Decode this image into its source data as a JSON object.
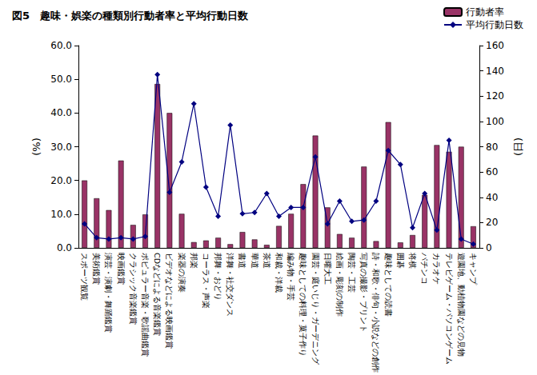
{
  "chart_data": {
    "type": "bar",
    "title": "図5　趣味・娯楽の種類別行動者率と平均行動日数",
    "ylabel": "(%)",
    "y2label": "(日)",
    "categories": [
      "スポーツ観覧",
      "美術鑑賞",
      "演芸・演劇・舞踊鑑賞",
      "映画鑑賞",
      "クラシック音楽鑑賞",
      "ポピュラー音楽・歌謡曲鑑賞",
      "CDなどによる音楽鑑賞",
      "ビデオなどによる映画鑑賞",
      "楽器の演奏",
      "邦楽",
      "コーラス・声楽",
      "邦舞・おどり",
      "洋舞・社交ダンス",
      "書道",
      "華道",
      "茶道",
      "和裁・洋裁",
      "編み物・手芸",
      "趣味としての料理・菓子作り",
      "園芸・庭いじり・ガーデニング",
      "日曜大工",
      "絵画・彫刻の制作",
      "陶芸・工芸",
      "写真の撮影・プリント",
      "詩・和歌・俳句・小説などの創作",
      "趣味としての読書",
      "囲碁",
      "将棋",
      "パチンコ",
      "カラオケ",
      "テレビゲーム・パソコンゲーム",
      "遊園地、動植物園などの見物",
      "キャンプ"
    ],
    "series": [
      {
        "name": "行動者率",
        "type": "bar",
        "color": "#993366",
        "values": [
          20.0,
          14.7,
          11.2,
          25.9,
          6.8,
          9.9,
          48.6,
          40.0,
          10.1,
          1.7,
          2.2,
          3.0,
          1.1,
          4.7,
          2.5,
          0.9,
          6.5,
          10.1,
          18.9,
          33.3,
          12.0,
          4.1,
          3.0,
          24.1,
          2.0,
          37.3,
          1.6,
          3.8,
          15.7,
          30.5,
          28.5,
          30.0,
          6.4
        ]
      },
      {
        "name": "平均行動日数",
        "type": "line",
        "axis": "y2",
        "color": "#000080",
        "marker": "diamond",
        "values": [
          19,
          8,
          7,
          8,
          7,
          9,
          137,
          44,
          68,
          114,
          48,
          25,
          97,
          27,
          28,
          43,
          25,
          32,
          32,
          72,
          19,
          37,
          21,
          22,
          37,
          77,
          66,
          16,
          43,
          14,
          85,
          7,
          3
        ]
      }
    ],
    "ylim": [
      0,
      60
    ],
    "yticks": [
      {
        "value": 0,
        "label": "0.0"
      },
      {
        "value": 10,
        "label": "10.0"
      },
      {
        "value": 20,
        "label": "20.0"
      },
      {
        "value": 30,
        "label": "30.0"
      },
      {
        "value": 40,
        "label": "40.0"
      },
      {
        "value": 50,
        "label": "50.0"
      },
      {
        "value": 60,
        "label": "60.0"
      }
    ],
    "y2lim": [
      0,
      160
    ],
    "y2ticks": [
      0,
      20,
      40,
      60,
      80,
      100,
      120,
      140,
      160
    ],
    "legend": "upper right",
    "grid": false
  }
}
